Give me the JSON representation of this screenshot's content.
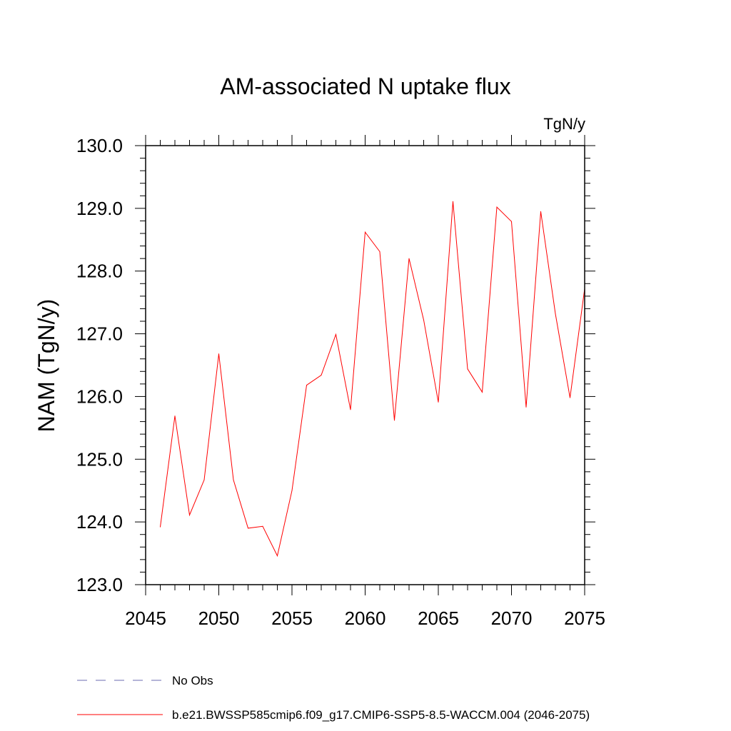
{
  "chart_data": {
    "type": "line",
    "title": "AM-associated N uptake flux",
    "units_label": "TgN/y",
    "ylabel": "NAM  (TgN/y)",
    "xlabel": "",
    "xlim": [
      2045,
      2075
    ],
    "ylim": [
      123.0,
      130.0
    ],
    "xticks": [
      2045,
      2050,
      2055,
      2060,
      2065,
      2070,
      2075
    ],
    "xtick_labels": [
      "2045",
      "2050",
      "2055",
      "2060",
      "2065",
      "2070",
      "2075"
    ],
    "yticks": [
      123.0,
      124.0,
      125.0,
      126.0,
      127.0,
      128.0,
      129.0,
      130.0
    ],
    "ytick_labels": [
      "123.0",
      "124.0",
      "125.0",
      "126.0",
      "127.0",
      "128.0",
      "129.0",
      "130.0"
    ],
    "grid": false,
    "legend_position": "bottom",
    "series": [
      {
        "name": "b.e21.BWSSP585cmip6.f09_g17.CMIP6-SSP5-8.5-WACCM.004 (2046-2075)",
        "color": "#ff0000",
        "style": "solid",
        "x": [
          2046,
          2047,
          2048,
          2049,
          2050,
          2051,
          2052,
          2053,
          2054,
          2055,
          2056,
          2057,
          2058,
          2059,
          2060,
          2061,
          2062,
          2063,
          2064,
          2065,
          2066,
          2067,
          2068,
          2069,
          2070,
          2071,
          2072,
          2073,
          2074,
          2075
        ],
        "y": [
          123.92,
          125.69,
          124.11,
          124.67,
          126.68,
          124.67,
          123.9,
          123.93,
          123.46,
          124.5,
          126.18,
          126.34,
          126.99,
          125.79,
          128.62,
          128.31,
          125.62,
          128.2,
          127.22,
          125.91,
          129.11,
          126.44,
          126.07,
          129.02,
          128.79,
          125.83,
          128.95,
          127.32,
          125.98,
          127.72
        ]
      }
    ],
    "legend": [
      {
        "label": "No Obs",
        "color": "#6b6bb0",
        "style": "dashed"
      },
      {
        "label": "b.e21.BWSSP585cmip6.f09_g17.CMIP6-SSP5-8.5-WACCM.004 (2046-2075)",
        "color": "#ff0000",
        "style": "solid"
      }
    ]
  }
}
